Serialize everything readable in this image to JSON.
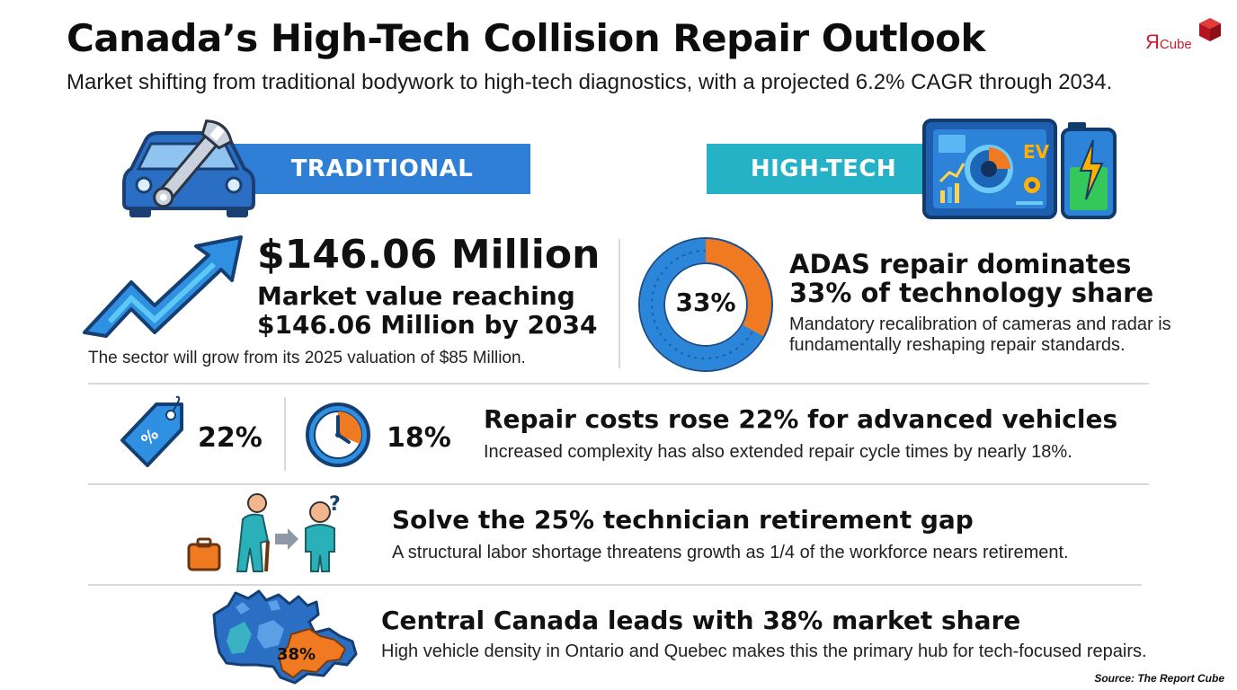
{
  "header": {
    "title": "Canada’s High-Tech Collision Repair Outlook",
    "subtitle": "Market shifting from traditional bodywork to high-tech diagnostics, with a projected 6.2% CAGR through 2034."
  },
  "logo": {
    "main": "Я",
    "suffix": "Cube"
  },
  "banners": {
    "traditional": "TRADITIONAL",
    "high_tech": "HIGH-TECH"
  },
  "dashboard_icon": {
    "label": "EV"
  },
  "market": {
    "value": "$146.06 Million",
    "headline": "Market value reaching $146.06 Million by 2034",
    "note": "The sector will grow from its 2025 valuation of $85 Million."
  },
  "adas": {
    "donut_label": "33%",
    "donut_fraction": 0.33,
    "headline": "ADAS repair dominates 33% of technology share",
    "description": "Mandatory recalibration of cameras and radar is fundamentally reshaping repair standards."
  },
  "costs": {
    "cost_pct": "22%",
    "time_pct": "18%",
    "headline": "Repair costs rose 22% for advanced vehicles",
    "description": "Increased complexity has also extended repair cycle times by nearly 18%."
  },
  "labor": {
    "headline": "Solve the 25% technician retirement gap",
    "description": "A structural labor shortage threatens growth as 1/4 of the workforce nears retirement."
  },
  "region": {
    "map_label": "38%",
    "headline": "Central Canada leads with 38% market share",
    "description": "High vehicle density in Ontario and Quebec makes this the primary hub for tech-focused repairs."
  },
  "source": "Source: The Report Cube",
  "colors": {
    "blue": "#2f7fd6",
    "teal": "#26b2c6",
    "orange": "#f07a22",
    "navy": "#1c4e8c"
  }
}
